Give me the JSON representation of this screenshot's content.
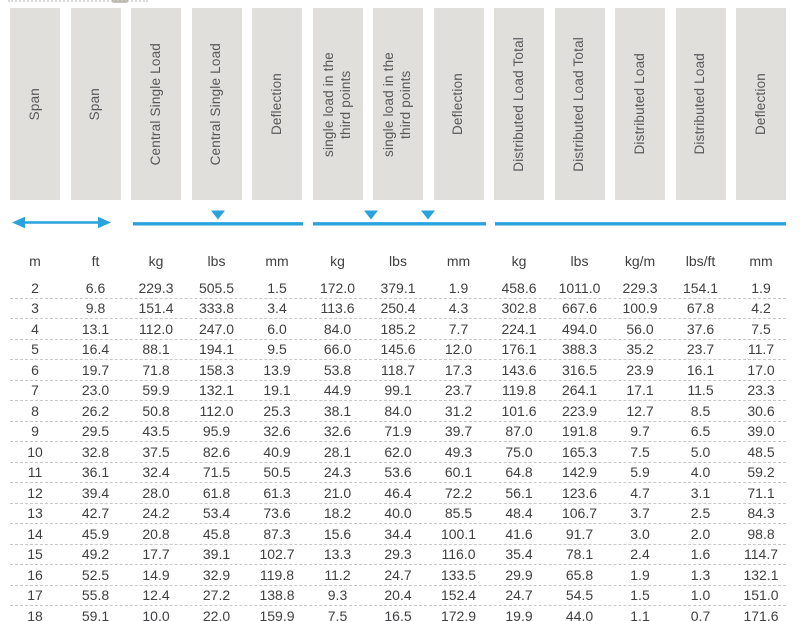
{
  "page": {
    "description": "Load and deflection rating table with span, central single load, third-point loads and distributed load columns",
    "background": "#ffffff"
  },
  "colors": {
    "accent_blue": "#29a3dc",
    "header_bg": "#e0dfdc",
    "header_text": "#58585a",
    "data_text": "#3f3f41",
    "row_divider": "#c9c8c5"
  },
  "table": {
    "column_headers": [
      "Span",
      "Span",
      "Central Single Load",
      "Central Single Load",
      "Deflection",
      "single load in the\nthird points",
      "single load in the\nthird points",
      "Deflection",
      "Distributed Load Total",
      "Distributed Load Total",
      "Distributed Load",
      "Distributed Load",
      "Deflection"
    ],
    "units": [
      "m",
      "ft",
      "kg",
      "lbs",
      "mm",
      "kg",
      "lbs",
      "mm",
      "kg",
      "lbs",
      "kg/m",
      "lbs/ft",
      "mm"
    ],
    "load_diagrams": [
      {
        "name": "span-extent-arrow",
        "type": "double-headed-arrow",
        "columns": "Span m-ft"
      },
      {
        "name": "central-single-load-diagram",
        "type": "beam-with-one-center-load-marker",
        "columns": "Central Single Load kg-lbs-mm"
      },
      {
        "name": "third-point-loads-diagram",
        "type": "beam-with-two-third-point-load-markers",
        "columns": "single load in the third points kg-lbs-mm"
      },
      {
        "name": "distributed-load-diagram",
        "type": "beam-line",
        "columns": "Distributed Load kg-lbs-kg/m-lbs/ft-mm"
      }
    ],
    "rows": [
      [
        "2",
        "6.6",
        "229.3",
        "505.5",
        "1.5",
        "172.0",
        "379.1",
        "1.9",
        "458.6",
        "1011.0",
        "229.3",
        "154.1",
        "1.9"
      ],
      [
        "3",
        "9.8",
        "151.4",
        "333.8",
        "3.4",
        "113.6",
        "250.4",
        "4.3",
        "302.8",
        "667.6",
        "100.9",
        "67.8",
        "4.2"
      ],
      [
        "4",
        "13.1",
        "112.0",
        "247.0",
        "6.0",
        "84.0",
        "185.2",
        "7.7",
        "224.1",
        "494.0",
        "56.0",
        "37.6",
        "7.5"
      ],
      [
        "5",
        "16.4",
        "88.1",
        "194.1",
        "9.5",
        "66.0",
        "145.6",
        "12.0",
        "176.1",
        "388.3",
        "35.2",
        "23.7",
        "11.7"
      ],
      [
        "6",
        "19.7",
        "71.8",
        "158.3",
        "13.9",
        "53.8",
        "118.7",
        "17.3",
        "143.6",
        "316.5",
        "23.9",
        "16.1",
        "17.0"
      ],
      [
        "7",
        "23.0",
        "59.9",
        "132.1",
        "19.1",
        "44.9",
        "99.1",
        "23.7",
        "119.8",
        "264.1",
        "17.1",
        "11.5",
        "23.3"
      ],
      [
        "8",
        "26.2",
        "50.8",
        "112.0",
        "25.3",
        "38.1",
        "84.0",
        "31.2",
        "101.6",
        "223.9",
        "12.7",
        "8.5",
        "30.6"
      ],
      [
        "9",
        "29.5",
        "43.5",
        "95.9",
        "32.6",
        "32.6",
        "71.9",
        "39.7",
        "87.0",
        "191.8",
        "9.7",
        "6.5",
        "39.0"
      ],
      [
        "10",
        "32.8",
        "37.5",
        "82.6",
        "40.9",
        "28.1",
        "62.0",
        "49.3",
        "75.0",
        "165.3",
        "7.5",
        "5.0",
        "48.5"
      ],
      [
        "11",
        "36.1",
        "32.4",
        "71.5",
        "50.5",
        "24.3",
        "53.6",
        "60.1",
        "64.8",
        "142.9",
        "5.9",
        "4.0",
        "59.2"
      ],
      [
        "12",
        "39.4",
        "28.0",
        "61.8",
        "61.3",
        "21.0",
        "46.4",
        "72.2",
        "56.1",
        "123.6",
        "4.7",
        "3.1",
        "71.1"
      ],
      [
        "13",
        "42.7",
        "24.2",
        "53.4",
        "73.6",
        "18.2",
        "40.0",
        "85.5",
        "48.4",
        "106.7",
        "3.7",
        "2.5",
        "84.3"
      ],
      [
        "14",
        "45.9",
        "20.8",
        "45.8",
        "87.3",
        "15.6",
        "34.4",
        "100.1",
        "41.6",
        "91.7",
        "3.0",
        "2.0",
        "98.8"
      ],
      [
        "15",
        "49.2",
        "17.7",
        "39.1",
        "102.7",
        "13.3",
        "29.3",
        "116.0",
        "35.4",
        "78.1",
        "2.4",
        "1.6",
        "114.7"
      ],
      [
        "16",
        "52.5",
        "14.9",
        "32.9",
        "119.8",
        "11.2",
        "24.7",
        "133.5",
        "29.9",
        "65.8",
        "1.9",
        "1.3",
        "132.1"
      ],
      [
        "17",
        "55.8",
        "12.4",
        "27.2",
        "138.8",
        "9.3",
        "20.4",
        "152.4",
        "24.7",
        "54.5",
        "1.5",
        "1.0",
        "151.0"
      ],
      [
        "18",
        "59.1",
        "10.0",
        "22.0",
        "159.9",
        "7.5",
        "16.5",
        "172.9",
        "19.9",
        "44.0",
        "1.1",
        "0.7",
        "171.6"
      ]
    ]
  }
}
